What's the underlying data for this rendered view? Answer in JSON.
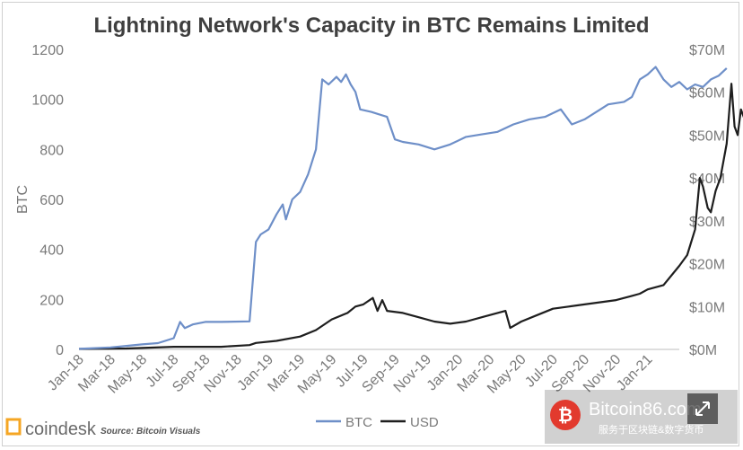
{
  "chart_data": {
    "type": "line",
    "title": "Lightning Network's Capacity in BTC Remains Limited",
    "ylabel": "BTC",
    "ylim": [
      0,
      1200
    ],
    "y_ticks": [
      "0",
      "200",
      "400",
      "600",
      "800",
      "1000",
      "1200"
    ],
    "y2lim": [
      0,
      70
    ],
    "y2_ticks": [
      "$0M",
      "$10M",
      "$20M",
      "$30M",
      "$40M",
      "$50M",
      "$60M",
      "$70M"
    ],
    "x_ticks": [
      "Jan-18",
      "Mar-18",
      "May-18",
      "Jul-18",
      "Sep-18",
      "Nov-18",
      "Jan-19",
      "Mar-19",
      "May-19",
      "Jul-19",
      "Sep-19",
      "Nov-19",
      "Jan-20",
      "Mar-20",
      "May-20",
      "Jul-20",
      "Sep-20",
      "Nov-20",
      "Jan-21"
    ],
    "x_range_months": [
      0,
      38
    ],
    "series": [
      {
        "name": "BTC",
        "color": "#6e8fc8",
        "axis": "left",
        "points": [
          [
            0,
            2
          ],
          [
            1,
            5
          ],
          [
            2,
            8
          ],
          [
            3,
            14
          ],
          [
            4,
            20
          ],
          [
            5,
            25
          ],
          [
            6,
            45
          ],
          [
            6.4,
            110
          ],
          [
            6.7,
            85
          ],
          [
            7.2,
            100
          ],
          [
            8,
            110
          ],
          [
            9,
            110
          ],
          [
            10.8,
            112
          ],
          [
            11.2,
            430
          ],
          [
            11.5,
            460
          ],
          [
            12,
            480
          ],
          [
            12.5,
            540
          ],
          [
            12.9,
            580
          ],
          [
            13.1,
            520
          ],
          [
            13.5,
            600
          ],
          [
            14,
            630
          ],
          [
            14.5,
            700
          ],
          [
            15,
            800
          ],
          [
            15.4,
            1080
          ],
          [
            15.8,
            1060
          ],
          [
            16.3,
            1090
          ],
          [
            16.6,
            1070
          ],
          [
            16.9,
            1100
          ],
          [
            17.2,
            1060
          ],
          [
            17.5,
            1030
          ],
          [
            17.8,
            960
          ],
          [
            18.5,
            950
          ],
          [
            19.5,
            930
          ],
          [
            20,
            840
          ],
          [
            20.5,
            830
          ],
          [
            21.5,
            820
          ],
          [
            22.5,
            800
          ],
          [
            23.5,
            820
          ],
          [
            24.5,
            850
          ],
          [
            25.5,
            860
          ],
          [
            26.5,
            870
          ],
          [
            27.5,
            900
          ],
          [
            28.5,
            920
          ],
          [
            29.5,
            930
          ],
          [
            30.5,
            960
          ],
          [
            31.2,
            900
          ],
          [
            32,
            920
          ],
          [
            33,
            960
          ],
          [
            33.5,
            980
          ],
          [
            34.5,
            990
          ],
          [
            35,
            1010
          ],
          [
            35.5,
            1080
          ],
          [
            36,
            1100
          ],
          [
            36.5,
            1130
          ],
          [
            37,
            1080
          ],
          [
            37.5,
            1050
          ],
          [
            38,
            1070
          ],
          [
            38.5,
            1040
          ],
          [
            39,
            1060
          ],
          [
            39.5,
            1050
          ],
          [
            40,
            1080
          ],
          [
            40.5,
            1095
          ],
          [
            41,
            1125
          ]
        ]
      },
      {
        "name": "USD",
        "color": "#1e1e1e",
        "axis": "right",
        "points": [
          [
            0,
            0.1
          ],
          [
            3,
            0.2
          ],
          [
            6,
            0.6
          ],
          [
            9,
            0.6
          ],
          [
            10.8,
            1.0
          ],
          [
            11.2,
            1.5
          ],
          [
            12.5,
            2.0
          ],
          [
            14,
            3.0
          ],
          [
            15,
            4.5
          ],
          [
            16,
            7.0
          ],
          [
            17,
            8.5
          ],
          [
            17.5,
            10.0
          ],
          [
            18,
            10.5
          ],
          [
            18.6,
            12.0
          ],
          [
            18.9,
            9.0
          ],
          [
            19.2,
            11.5
          ],
          [
            19.5,
            9.0
          ],
          [
            20.5,
            8.5
          ],
          [
            21.5,
            7.5
          ],
          [
            22.5,
            6.5
          ],
          [
            23.5,
            6.0
          ],
          [
            24.5,
            6.5
          ],
          [
            25.5,
            7.5
          ],
          [
            26.5,
            8.5
          ],
          [
            27,
            9.0
          ],
          [
            27.3,
            5.0
          ],
          [
            28,
            6.5
          ],
          [
            29,
            8.0
          ],
          [
            30,
            9.5
          ],
          [
            31,
            10.0
          ],
          [
            32,
            10.5
          ],
          [
            33,
            11.0
          ],
          [
            34,
            11.5
          ],
          [
            35,
            12.5
          ],
          [
            35.5,
            13.0
          ],
          [
            36,
            14.0
          ],
          [
            37,
            15.0
          ],
          [
            38,
            19.5
          ],
          [
            38.5,
            22.0
          ],
          [
            39,
            28.0
          ],
          [
            39.3,
            40.0
          ],
          [
            39.5,
            38.0
          ],
          [
            39.8,
            33.0
          ],
          [
            40,
            32.0
          ],
          [
            40.3,
            37.0
          ],
          [
            40.6,
            40.0
          ],
          [
            41,
            48.0
          ],
          [
            41.3,
            62.0
          ],
          [
            41.5,
            52.0
          ],
          [
            41.7,
            50.0
          ],
          [
            41.9,
            56.0
          ],
          [
            42.1,
            54.0
          ],
          [
            42.3,
            56.0
          ]
        ]
      }
    ],
    "legend": [
      "BTC",
      "USD"
    ],
    "legend_position": "bottom-center"
  },
  "branding": {
    "logo_text": "coindesk",
    "source": "Source: Bitcoin Visuals",
    "watermark_main": "Bitcoin86.com",
    "watermark_sub": "服务于区块链&数字货币"
  }
}
